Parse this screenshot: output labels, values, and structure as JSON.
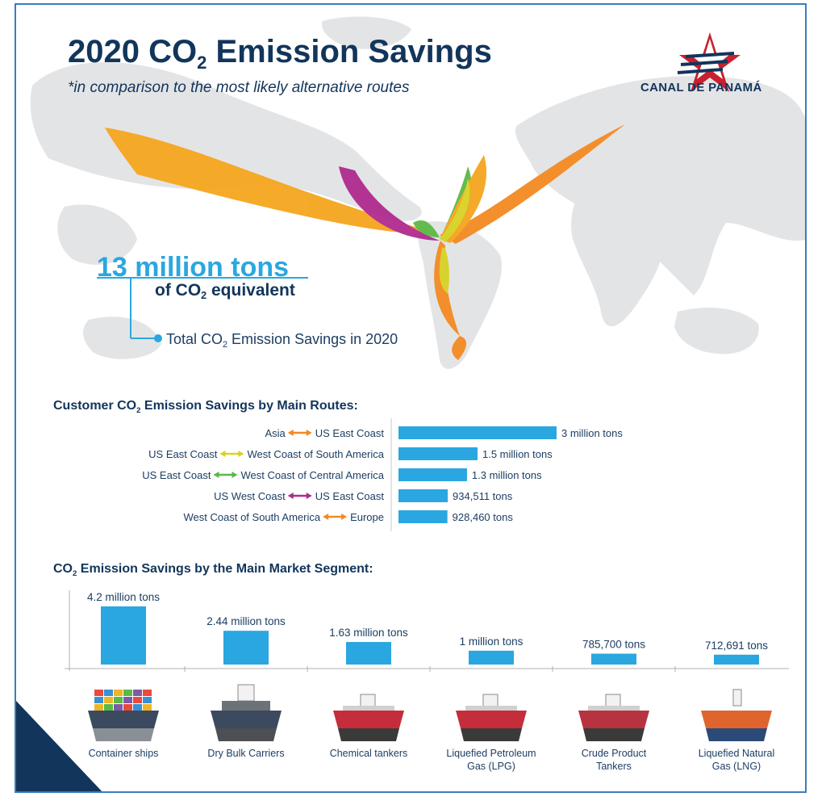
{
  "header": {
    "title_main": "2020 CO",
    "title_sub": "2",
    "title_rest": " Emission Savings",
    "subtitle": "*in comparison to the most likely alternative routes"
  },
  "logo": {
    "text": "Canal de Panamá"
  },
  "summary": {
    "big_number": "13 million tons",
    "equiv_pre": "of CO",
    "equiv_sub": "2",
    "equiv_post": " equivalent",
    "total_pre": "Total CO",
    "total_sub": "2",
    "total_post": " Emission Savings in 2020"
  },
  "colors": {
    "navy": "#12355b",
    "bar_blue": "#2aa7e0",
    "orange": "#f38a21",
    "yellow": "#d8d323",
    "green": "#5bb946",
    "magenta": "#b02b8e",
    "map_gray": "#e3e4e6"
  },
  "chart_data": [
    {
      "type": "bar",
      "orientation": "horizontal",
      "title_pre": "Customer CO",
      "title_sub": "2",
      "title_post": " Emission Savings by Main Routes:",
      "categories": [
        {
          "from": "Asia",
          "to": "US East Coast",
          "arrow_color": "#f38a21"
        },
        {
          "from": "US East Coast",
          "to": "West Coast of South America",
          "arrow_color": "#d8d323"
        },
        {
          "from": "US East Coast",
          "to": "West Coast of Central America",
          "arrow_color": "#5bb946"
        },
        {
          "from": "US West Coast",
          "to": "US East Coast",
          "arrow_color": "#b02b8e"
        },
        {
          "from": "West Coast of South America",
          "to": "Europe",
          "arrow_color": "#f38a21"
        }
      ],
      "values": [
        3000000,
        1500000,
        1300000,
        934511,
        928460
      ],
      "value_labels": [
        "3 million tons",
        "1.5 million tons",
        "1.3 million tons",
        "934,511 tons",
        "928,460 tons"
      ],
      "xlim": [
        0,
        3000000
      ]
    },
    {
      "type": "bar",
      "orientation": "vertical",
      "title_pre": "CO",
      "title_sub": "2",
      "title_post": " Emission Savings by the Main Market Segment:",
      "categories": [
        "Container ships",
        "Dry Bulk Carriers",
        "Chemical tankers",
        "Liquefied Petroleum Gas (LPG)",
        "Crude Product Tankers",
        "Liquefied Natural Gas (LNG)"
      ],
      "category_lines": [
        [
          "Container ships"
        ],
        [
          "Dry Bulk Carriers"
        ],
        [
          "Chemical tankers"
        ],
        [
          "Liquefied Petroleum",
          "Gas (LPG)"
        ],
        [
          "Crude Product",
          "Tankers"
        ],
        [
          "Liquefied Natural",
          "Gas (LNG)"
        ]
      ],
      "values": [
        4200000,
        2440000,
        1630000,
        1000000,
        785700,
        712691
      ],
      "value_labels": [
        "4.2 million tons",
        "2.44 million tons",
        "1.63 million tons",
        "1 million tons",
        "785,700 tons",
        "712,691 tons"
      ],
      "ylim": [
        0,
        4200000
      ]
    }
  ]
}
